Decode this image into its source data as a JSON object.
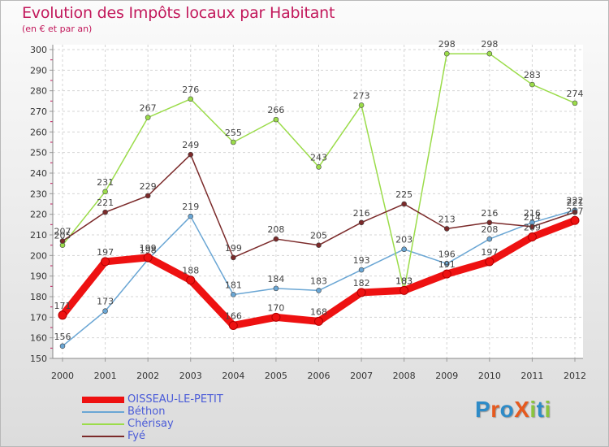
{
  "title": "Evolution des Impôts locaux par Habitant",
  "subtitle": "(en € et par an)",
  "brand": {
    "text": "ProXiti",
    "colors": [
      "#2e8bc7",
      "#e65a1f",
      "#2e8bc7",
      "#e65a1f",
      "#8ac43f",
      "#2e8bc7",
      "#8ac43f"
    ]
  },
  "chart_data": {
    "type": "line",
    "title": "Evolution des Impôts locaux par Habitant",
    "subtitle": "(en € et par an)",
    "x": [
      "2000",
      "2001",
      "2002",
      "2003",
      "2004",
      "2005",
      "2006",
      "2007",
      "2008",
      "2009",
      "2010",
      "2011",
      "2012"
    ],
    "ylim": [
      150,
      300
    ],
    "yticks": [
      150,
      160,
      170,
      180,
      190,
      200,
      210,
      220,
      230,
      240,
      250,
      260,
      270,
      280,
      290,
      300
    ],
    "grid": true,
    "legend": "bottom-left",
    "series": [
      {
        "name": "OISSEAU-LE-PETIT",
        "color": "#ee1111",
        "values": [
          171,
          197,
          199,
          188,
          166,
          170,
          168,
          182,
          183,
          191,
          197,
          209,
          217
        ]
      },
      {
        "name": "Béthon",
        "color": "#6aa6d4",
        "values": [
          156,
          173,
          198,
          219,
          181,
          184,
          183,
          193,
          203,
          196,
          208,
          216,
          222
        ]
      },
      {
        "name": "Chérisay",
        "color": "#9bdc4a",
        "values": [
          205,
          231,
          267,
          276,
          255,
          266,
          243,
          273,
          183,
          298,
          298,
          283,
          274
        ]
      },
      {
        "name": "Fyé",
        "color": "#7b2a2a",
        "values": [
          207,
          221,
          229,
          249,
          199,
          208,
          205,
          216,
          225,
          213,
          216,
          214,
          221
        ]
      }
    ]
  }
}
